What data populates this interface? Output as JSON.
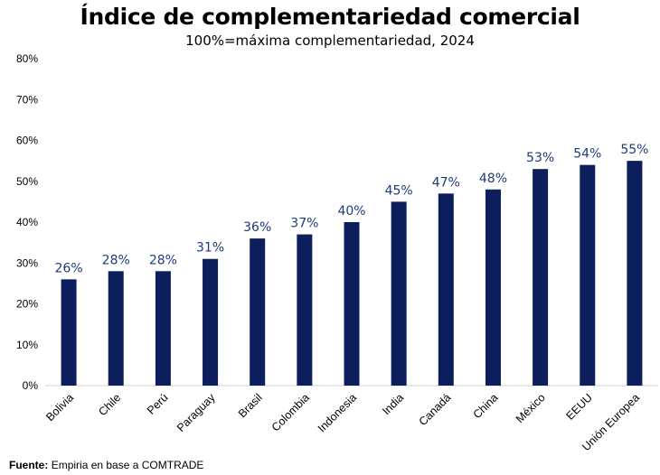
{
  "chart_data": {
    "type": "bar",
    "title": "Índice de complementariedad comercial",
    "subtitle": "100%=máxima complementariedad, 2024",
    "categories": [
      "Bolivia",
      "Chile",
      "Perú",
      "Paraguay",
      "Brasil",
      "Colombia",
      "Indonesia",
      "India",
      "Canadá",
      "China",
      "México",
      "EEUU",
      "Unión Europea"
    ],
    "values": [
      26,
      28,
      28,
      31,
      36,
      37,
      40,
      45,
      47,
      48,
      53,
      54,
      55
    ],
    "value_labels": [
      "26%",
      "28%",
      "28%",
      "31%",
      "36%",
      "37%",
      "40%",
      "45%",
      "47%",
      "48%",
      "53%",
      "54%",
      "55%"
    ],
    "yticks": [
      "0%",
      "10%",
      "20%",
      "30%",
      "40%",
      "50%",
      "60%",
      "70%",
      "80%"
    ],
    "ylim": [
      0,
      80
    ],
    "xlabel": "",
    "ylabel": "",
    "grid": false,
    "bar_color": "#0c1f5c",
    "label_color": "#1f3a78"
  },
  "source": {
    "prefix": "Fuente:",
    "text": "Empiria en base a COMTRADE"
  }
}
